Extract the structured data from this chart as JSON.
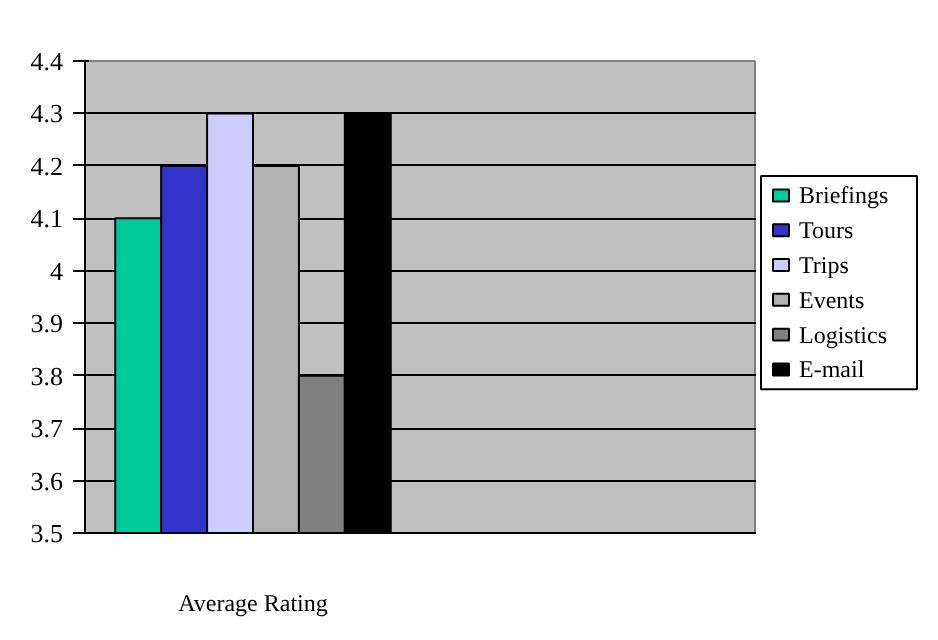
{
  "chart_data": {
    "type": "bar",
    "categories": [
      "Average Rating",
      null
    ],
    "series": [
      {
        "name": "Briefings",
        "color": "#00cc99",
        "values": [
          4.1,
          null
        ]
      },
      {
        "name": "Tours",
        "color": "#3333cc",
        "values": [
          4.2,
          null
        ]
      },
      {
        "name": "Trips",
        "color": "#ccccff",
        "values": [
          4.3,
          null
        ]
      },
      {
        "name": "Events",
        "color": "#b2b2b2",
        "values": [
          4.2,
          null
        ]
      },
      {
        "name": "Logistics",
        "color": "#808080",
        "values": [
          3.8,
          null
        ]
      },
      {
        "name": "E-mail",
        "color": "#000000",
        "values": [
          4.3,
          null
        ]
      }
    ],
    "ylim": [
      3.5,
      4.4
    ],
    "yticks": [
      3.5,
      3.6,
      3.7,
      3.8,
      3.9,
      4,
      4.1,
      4.2,
      4.3,
      4.4
    ],
    "grid": "y",
    "legend": "right"
  }
}
